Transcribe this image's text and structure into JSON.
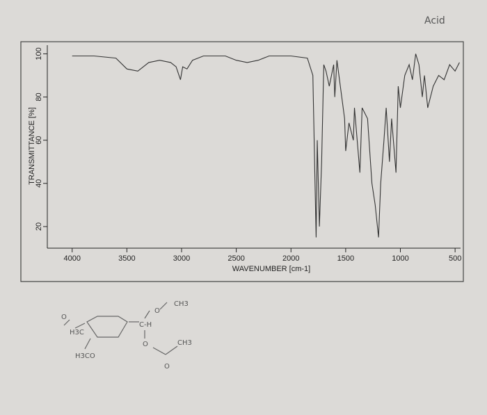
{
  "chart_data": {
    "type": "line",
    "xlabel": "WAVENUMBER [cm-1]",
    "ylabel": "TRANSMITTANCE [%]",
    "x": [
      4000,
      3800,
      3600,
      3500,
      3400,
      3300,
      3200,
      3100,
      3050,
      3010,
      2990,
      2950,
      2900,
      2800,
      2600,
      2500,
      2400,
      2300,
      2200,
      2000,
      1850,
      1800,
      1780,
      1770,
      1760,
      1740,
      1720,
      1700,
      1680,
      1650,
      1610,
      1600,
      1580,
      1510,
      1500,
      1470,
      1430,
      1420,
      1370,
      1350,
      1300,
      1260,
      1230,
      1200,
      1180,
      1150,
      1130,
      1100,
      1080,
      1040,
      1020,
      1000,
      960,
      920,
      890,
      860,
      830,
      800,
      780,
      750,
      700,
      650,
      600,
      550,
      500,
      460
    ],
    "values": [
      99,
      99,
      98,
      93,
      92,
      96,
      97,
      96,
      94,
      88,
      94,
      93,
      97,
      99,
      99,
      97,
      96,
      97,
      99,
      99,
      98,
      90,
      40,
      15,
      60,
      20,
      50,
      95,
      92,
      85,
      95,
      80,
      97,
      70,
      55,
      68,
      60,
      75,
      45,
      75,
      70,
      40,
      30,
      15,
      40,
      60,
      75,
      50,
      70,
      45,
      85,
      75,
      90,
      95,
      88,
      100,
      95,
      80,
      90,
      75,
      85,
      90,
      88,
      95,
      92,
      96
    ],
    "color": "#333333",
    "xlim": [
      4100,
      450
    ],
    "xticks": [
      4000,
      3500,
      3000,
      2500,
      2000,
      1500,
      1000,
      500
    ],
    "ylim": [
      10,
      104
    ],
    "yticks": [
      20,
      40,
      60,
      80,
      100
    ],
    "annotations": [
      "Acid",
      "H3C",
      "O",
      "O",
      "CH3",
      "C-H",
      "O",
      "CH3",
      "O",
      "H3CO"
    ]
  }
}
